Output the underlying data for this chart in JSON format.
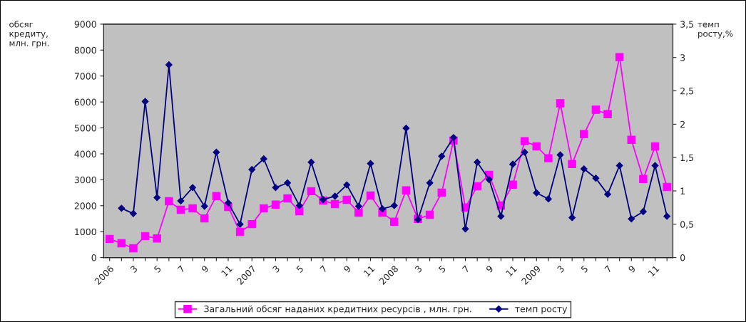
{
  "chart_data": {
    "type": "line",
    "ylabel": "обсяг\nкредиту,\nмлн. грн.",
    "y2label": "темп\nросту,%",
    "categories": [
      "2006",
      null,
      "3",
      null,
      "5",
      null,
      "7",
      null,
      "9",
      null,
      "11",
      null,
      "2007",
      null,
      "3",
      null,
      "5",
      null,
      "7",
      null,
      "9",
      null,
      "11",
      null,
      "2008",
      null,
      "3",
      null,
      "5",
      null,
      "7",
      null,
      "9",
      null,
      "11",
      null,
      "2009",
      null,
      "3",
      null,
      "5",
      null,
      "7",
      null,
      "9",
      null,
      "11",
      null
    ],
    "series": [
      {
        "name": "Загальний обсяг наданих кредитних ресурсів , млн. грн.",
        "color": "#ff00ff",
        "marker": "square",
        "values": [
          720,
          550,
          360,
          830,
          740,
          2170,
          1840,
          1900,
          1510,
          2370,
          1950,
          990,
          1290,
          1900,
          2040,
          2280,
          1790,
          2560,
          2200,
          2060,
          2230,
          1730,
          2390,
          1730,
          1380,
          2590,
          1490,
          1650,
          2500,
          4510,
          1930,
          2750,
          3190,
          2010,
          2810,
          4490,
          4290,
          3830,
          5950,
          3610,
          4760,
          5700,
          5530,
          7730,
          4540,
          3030,
          4290,
          2720
        ]
      },
      {
        "name": "темп росту",
        "color": "#000080",
        "marker": "diamond",
        "axis": "y2",
        "values": [
          null,
          0.74,
          0.66,
          2.34,
          0.9,
          2.89,
          0.85,
          1.05,
          0.77,
          1.58,
          0.82,
          0.5,
          1.32,
          1.48,
          1.05,
          1.12,
          0.78,
          1.43,
          0.87,
          0.92,
          1.09,
          0.77,
          1.41,
          0.73,
          0.78,
          1.94,
          0.57,
          1.12,
          1.52,
          1.8,
          0.43,
          1.43,
          1.17,
          0.62,
          1.4,
          1.58,
          0.97,
          0.88,
          1.54,
          0.6,
          1.33,
          1.19,
          0.95,
          1.38,
          0.58,
          0.69,
          1.38,
          0.62
        ]
      }
    ],
    "ylim": [
      0,
      9000
    ],
    "yticks": [
      0,
      1000,
      2000,
      3000,
      4000,
      5000,
      6000,
      7000,
      8000,
      9000
    ],
    "y2lim": [
      0,
      3.5
    ],
    "y2ticks": [
      0,
      {
        "value": 0.5,
        "label": "0,5"
      },
      1,
      {
        "value": 1.5,
        "label": "1,5"
      },
      2,
      {
        "value": 2.5,
        "label": "2,5"
      },
      3,
      {
        "value": 3.5,
        "label": "3,5"
      }
    ],
    "grid": false,
    "legend": "bottom"
  }
}
